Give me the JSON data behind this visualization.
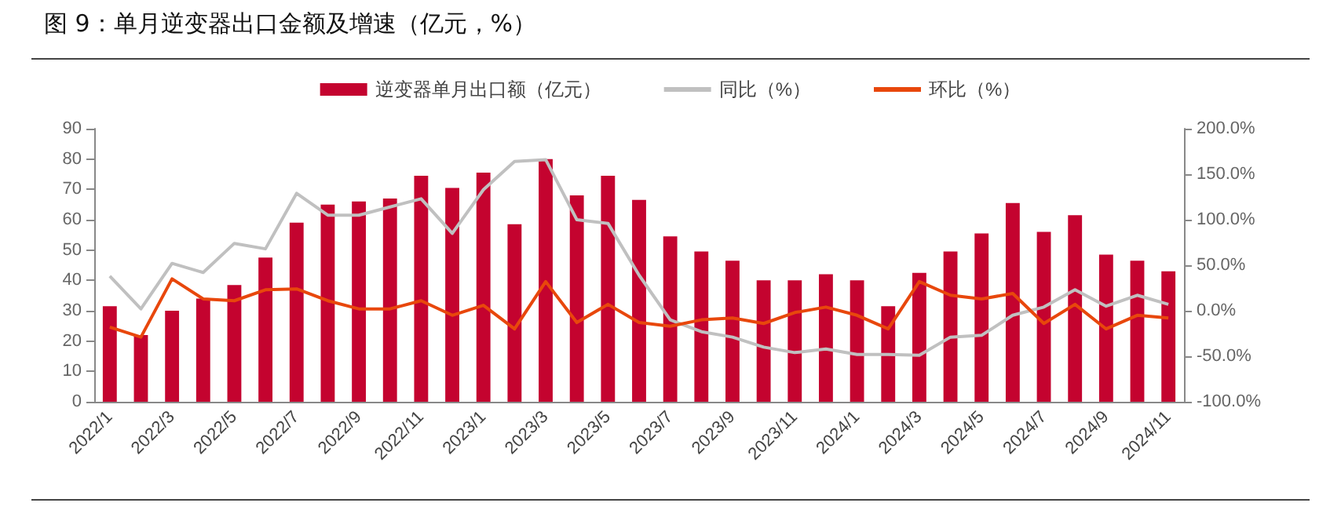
{
  "chart_data": {
    "type": "bar",
    "title": "图 9：单月逆变器出口金额及增速（亿元，%）",
    "categories": [
      "2022/1",
      null,
      "2022/3",
      null,
      "2022/5",
      null,
      "2022/7",
      null,
      "2022/9",
      null,
      "2022/11",
      null,
      "2023/1",
      null,
      "2023/3",
      null,
      "2023/5",
      null,
      "2023/7",
      null,
      "2023/9",
      null,
      "2023/11",
      null,
      "2024/1",
      null,
      "2024/3",
      null,
      "2024/5",
      null,
      "2024/7",
      null,
      "2024/9",
      null,
      "2024/11"
    ],
    "series": [
      {
        "name": "逆变器单月出口额（亿元）",
        "color": "#c4032f",
        "values": [
          31.5,
          22,
          30,
          34,
          38.5,
          47.5,
          59,
          65,
          66,
          67,
          74.5,
          70.5,
          75.5,
          58.5,
          80,
          68,
          74.5,
          66.5,
          54.5,
          49.5,
          46.5,
          40,
          40,
          42,
          40,
          31.5,
          42.5,
          49.5,
          55.5,
          65.5,
          56,
          61.5,
          48.5,
          46.5,
          43
        ]
      },
      {
        "name": "同比（%）",
        "type": "line",
        "axis": "y2",
        "color": "#c0c0c0",
        "values": [
          38,
          2,
          52,
          42,
          74,
          68,
          129,
          105,
          105,
          114,
          123,
          85,
          133,
          164,
          166,
          100,
          96,
          39,
          -10,
          -23,
          -29,
          -40,
          -46,
          -42,
          -48,
          -48,
          -49,
          -29,
          -27,
          -5,
          4,
          23,
          5,
          17,
          7
        ]
      },
      {
        "name": "环比（%）",
        "type": "line",
        "axis": "y2",
        "color": "#e8470c",
        "values": [
          -18,
          -29,
          35,
          13,
          11,
          23,
          24,
          11,
          2,
          2,
          11,
          -5,
          6,
          -20,
          32,
          -13,
          7,
          -13,
          -17,
          -10,
          -8,
          -14,
          -2,
          4,
          -5,
          -20,
          32,
          17,
          13,
          19,
          -14,
          7,
          -20,
          -5,
          -8
        ]
      }
    ],
    "ylim": [
      0,
      90
    ],
    "yticks": [
      0,
      10,
      20,
      30,
      40,
      50,
      60,
      70,
      80,
      90
    ],
    "y2lim": [
      -100,
      200
    ],
    "y2ticks": [
      {
        "value": -100,
        "label": "-100.0%"
      },
      {
        "value": -50,
        "label": "-50.0%"
      },
      {
        "value": 0,
        "label": "0.0%"
      },
      {
        "value": 50,
        "label": "50.0%"
      },
      {
        "value": 100,
        "label": "100.0%"
      },
      {
        "value": 150,
        "label": "150.0%"
      },
      {
        "value": 200,
        "label": "200.0%"
      }
    ],
    "marker": "none",
    "line_style": "solid",
    "grid": false,
    "legend": "top"
  }
}
